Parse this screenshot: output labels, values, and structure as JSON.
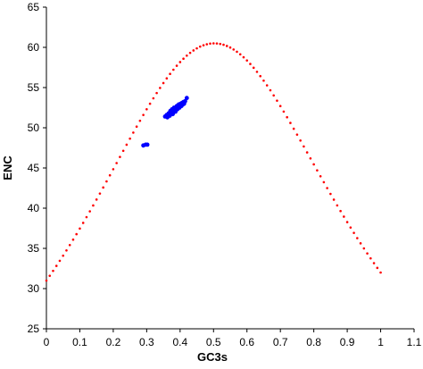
{
  "chart_data": {
    "type": "scatter",
    "title": "",
    "xlabel": "GC3s",
    "ylabel": "ENC",
    "xlim": [
      0,
      1.1
    ],
    "ylim": [
      25,
      65
    ],
    "grid": false,
    "legend": "none",
    "x_ticks": [
      "0",
      "0.1",
      "0.2",
      "0.3",
      "0.4",
      "0.5",
      "0.6",
      "0.7",
      "0.8",
      "0.9",
      "1",
      "1.1"
    ],
    "y_ticks": [
      "25",
      "30",
      "35",
      "40",
      "45",
      "50",
      "55",
      "60",
      "65"
    ],
    "series": [
      {
        "kind": "expected-curve",
        "color": "#ff0000",
        "marker": "dot",
        "formula": "ENC = 2 + s + 29 / (s^2 + (1 - s)^2)",
        "x_range": [
          0,
          1
        ],
        "x_step": 0.01
      },
      {
        "kind": "genes",
        "color": "#0000ff",
        "marker": "circle",
        "points": [
          [
            0.29,
            47.8
          ],
          [
            0.297,
            47.9
          ],
          [
            0.302,
            47.9
          ],
          [
            0.355,
            51.4
          ],
          [
            0.36,
            51.6
          ],
          [
            0.362,
            51.3
          ],
          [
            0.366,
            51.8
          ],
          [
            0.369,
            51.5
          ],
          [
            0.371,
            52.1
          ],
          [
            0.374,
            51.9
          ],
          [
            0.376,
            52.3
          ],
          [
            0.378,
            51.7
          ],
          [
            0.38,
            52.0
          ],
          [
            0.382,
            52.5
          ],
          [
            0.384,
            52.2
          ],
          [
            0.386,
            52.0
          ],
          [
            0.388,
            52.4
          ],
          [
            0.39,
            52.7
          ],
          [
            0.392,
            52.3
          ],
          [
            0.394,
            52.6
          ],
          [
            0.396,
            52.9
          ],
          [
            0.398,
            52.5
          ],
          [
            0.4,
            52.8
          ],
          [
            0.402,
            53.0
          ],
          [
            0.404,
            52.7
          ],
          [
            0.406,
            53.1
          ],
          [
            0.408,
            52.9
          ],
          [
            0.41,
            53.2
          ],
          [
            0.412,
            53.0
          ],
          [
            0.415,
            53.3
          ],
          [
            0.42,
            53.7
          ]
        ]
      }
    ]
  }
}
